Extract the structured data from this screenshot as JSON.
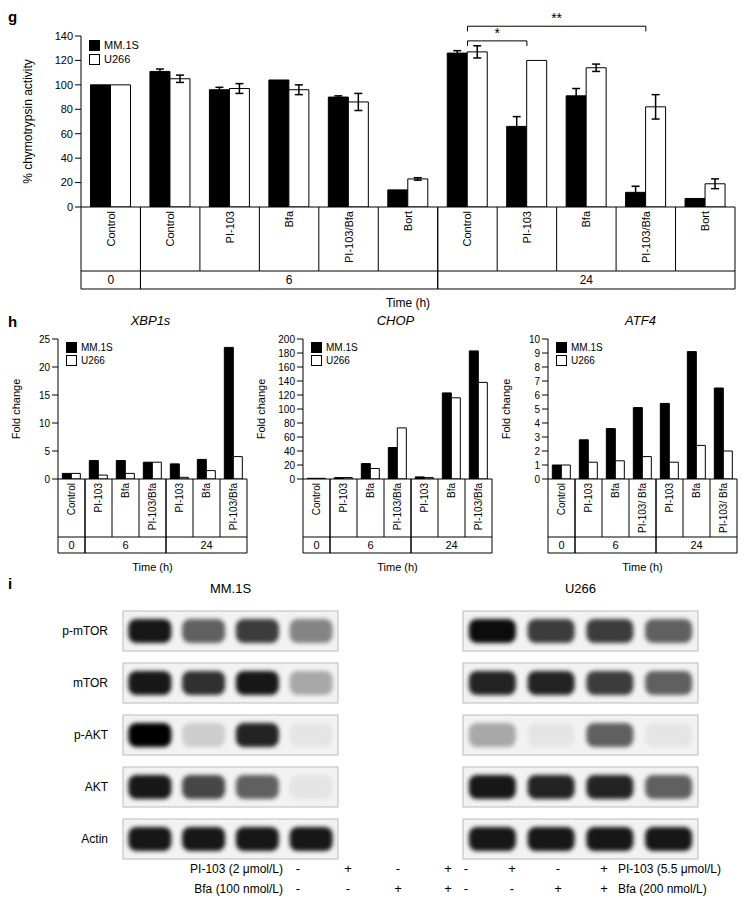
{
  "chart_data": [
    {
      "panel": "g",
      "type": "bar",
      "y_label": "% chymotrypsin activity",
      "x_label": "Time (h)",
      "categories": [
        "Control",
        "Control",
        "PI-103",
        "Bfa",
        "PI-103/Bfa",
        "Bort",
        "Control",
        "PI-103",
        "Bfa",
        "PI-103/Bfa",
        "Bort"
      ],
      "groups": [
        "0",
        "6",
        "6",
        "6",
        "6",
        "6",
        "24",
        "24",
        "24",
        "24",
        "24"
      ],
      "series": [
        {
          "name": "MM.1S",
          "color": "#000000",
          "values": [
            100,
            111,
            96,
            104,
            90,
            14,
            126,
            66,
            91,
            12,
            7
          ],
          "errors": [
            0,
            2,
            2,
            0,
            1,
            0,
            2,
            8,
            6,
            5,
            0
          ]
        },
        {
          "name": "U266",
          "color": "#ffffff",
          "values": [
            100,
            105,
            97,
            96,
            86,
            23,
            127,
            120,
            114,
            82,
            19
          ],
          "errors": [
            0,
            3,
            4,
            4,
            7,
            1,
            5,
            0,
            3,
            10,
            4
          ]
        }
      ],
      "ylim": [
        0,
        140
      ],
      "yticks": [
        0,
        20,
        40,
        60,
        80,
        100,
        120,
        140
      ],
      "legend": "upper left",
      "annotations": [
        {
          "text": "*",
          "from": 6,
          "to": 7,
          "y": 136
        },
        {
          "text": "**",
          "from": 6,
          "to": 9,
          "y": 148
        }
      ]
    },
    {
      "panel": "h",
      "type": "bar",
      "title": "XBP1s",
      "y_label": "Fold change",
      "x_label": "Time (h)",
      "categories": [
        "Control",
        "PI-103",
        "Bfa",
        "PI-103/Bfa",
        "PI-103",
        "Bfa",
        "PI-103/Bfa"
      ],
      "groups": [
        "0",
        "6",
        "6",
        "6",
        "24",
        "24",
        "24"
      ],
      "series": [
        {
          "name": "MM.1S",
          "color": "#000000",
          "values": [
            1,
            3.3,
            3.3,
            3,
            2.7,
            3.5,
            23.5
          ]
        },
        {
          "name": "U266",
          "color": "#ffffff",
          "values": [
            1,
            0.7,
            1,
            3,
            0.3,
            1.5,
            4
          ]
        }
      ],
      "ylim": [
        0,
        25
      ],
      "yticks": [
        0,
        5,
        10,
        15,
        20,
        25
      ],
      "legend": "upper left"
    },
    {
      "type": "bar",
      "title": "CHOP",
      "y_label": "Fold change",
      "x_label": "Time (h)",
      "categories": [
        "Control",
        "PI-103",
        "Bfa",
        "PI-103/Bfa",
        "PI-103",
        "Bfa",
        "PI-103/Bfa"
      ],
      "groups": [
        "0",
        "6",
        "6",
        "6",
        "24",
        "24",
        "24"
      ],
      "series": [
        {
          "name": "MM.1S",
          "color": "#000000",
          "values": [
            1,
            2,
            22,
            45,
            3,
            123,
            183
          ]
        },
        {
          "name": "U266",
          "color": "#ffffff",
          "values": [
            1,
            2,
            15,
            73,
            2,
            116,
            138
          ]
        }
      ],
      "ylim": [
        0,
        200
      ],
      "yticks": [
        0,
        20,
        40,
        60,
        80,
        100,
        120,
        140,
        160,
        180,
        200
      ],
      "legend": "upper left"
    },
    {
      "type": "bar",
      "title": "ATF4",
      "y_label": "Fold change",
      "x_label": "Time (h)",
      "categories": [
        "Control",
        "PI-103",
        "Bfa",
        "PI-103/ Bfa",
        "PI-103",
        "Bfa",
        "PI-103/ Bfa"
      ],
      "groups": [
        "0",
        "6",
        "6",
        "6",
        "24",
        "24",
        "24"
      ],
      "series": [
        {
          "name": "MM.1S",
          "color": "#000000",
          "values": [
            1,
            2.8,
            3.6,
            5.1,
            5.4,
            9.1,
            6.5
          ]
        },
        {
          "name": "U266",
          "color": "#ffffff",
          "values": [
            1,
            1.2,
            1.3,
            1.6,
            1.2,
            2.4,
            2.0
          ]
        }
      ],
      "ylim": [
        0,
        10
      ],
      "yticks": [
        0,
        1,
        2,
        3,
        4,
        5,
        6,
        7,
        8,
        9,
        10
      ],
      "legend": "upper left"
    }
  ],
  "blot": {
    "panel": "i",
    "proteins": [
      "p-mTOR",
      "mTOR",
      "p-AKT",
      "AKT",
      "Actin"
    ],
    "cell_lines": [
      {
        "name": "MM.1S",
        "treatments": [
          {
            "label": "PI-103 (2 μmol/L)",
            "signs": [
              "-",
              "+",
              "-",
              "+"
            ]
          },
          {
            "label": "Bfa (100 nmol/L)",
            "signs": [
              "-",
              "-",
              "+",
              "+"
            ]
          }
        ],
        "intensities": [
          [
            0.9,
            0.6,
            0.75,
            0.45
          ],
          [
            0.9,
            0.8,
            0.9,
            0.3
          ],
          [
            1.0,
            0.15,
            0.85,
            0.05
          ],
          [
            0.9,
            0.7,
            0.6,
            0.05
          ],
          [
            0.9,
            0.9,
            0.9,
            0.9
          ]
        ]
      },
      {
        "name": "U266",
        "treatments": [
          {
            "label": "PI-103 (5.5 μmol/L)",
            "signs": [
              "-",
              "+",
              "-",
              "+"
            ]
          },
          {
            "label": "Bfa (200 nmol/L)",
            "signs": [
              "-",
              "-",
              "+",
              "+"
            ]
          }
        ],
        "intensities": [
          [
            0.95,
            0.75,
            0.75,
            0.6
          ],
          [
            0.85,
            0.85,
            0.75,
            0.6
          ],
          [
            0.3,
            0.05,
            0.6,
            0.05
          ],
          [
            0.9,
            0.85,
            0.85,
            0.6
          ],
          [
            0.9,
            0.9,
            0.9,
            0.9
          ]
        ]
      }
    ]
  }
}
